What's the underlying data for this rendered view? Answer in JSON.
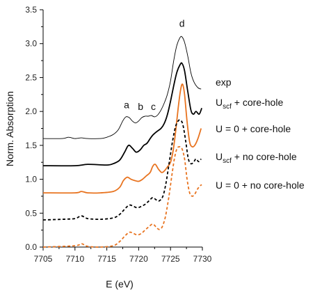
{
  "chart_data": {
    "type": "line",
    "xlabel": "E (eV)",
    "ylabel": "Norm. Absorption",
    "xlim": [
      7705,
      7730
    ],
    "ylim": [
      0.0,
      3.5
    ],
    "xticks": [
      "7705",
      "7710",
      "7715",
      "7720",
      "7725",
      "7730"
    ],
    "yticks": [
      "0.0",
      "0.5",
      "1.0",
      "1.5",
      "2.0",
      "2.5",
      "3.0",
      "3.5"
    ],
    "annotations": [
      {
        "label": "a",
        "x": 7718.1,
        "y": 2.05
      },
      {
        "label": "b",
        "x": 7720.3,
        "y": 2.02
      },
      {
        "label": "c",
        "x": 7722.3,
        "y": 2.02
      },
      {
        "label": "d",
        "x": 7726.8,
        "y": 3.25
      }
    ],
    "series": [
      {
        "name": "exp",
        "color": "#000000",
        "style": "solid",
        "weight": "thin",
        "x": [
          7705,
          7708,
          7709,
          7710,
          7711,
          7712,
          7714,
          7715,
          7716,
          7716.8,
          7717.5,
          7718.0,
          7718.5,
          7719.0,
          7719.5,
          7720.0,
          7720.5,
          7721.0,
          7721.5,
          7722.0,
          7722.5,
          7723.0,
          7723.5,
          7724.0,
          7724.5,
          7725.0,
          7725.5,
          7726.0,
          7726.5,
          7726.8,
          7727.2,
          7727.7,
          7728.2,
          7728.7,
          7729.3,
          7729.8
        ],
        "y": [
          1.6,
          1.6,
          1.62,
          1.6,
          1.61,
          1.6,
          1.6,
          1.62,
          1.66,
          1.73,
          1.86,
          1.92,
          1.91,
          1.86,
          1.83,
          1.86,
          1.91,
          1.93,
          1.93,
          1.94,
          1.92,
          1.95,
          2.02,
          2.12,
          2.25,
          2.45,
          2.75,
          2.98,
          3.09,
          3.1,
          3.02,
          2.82,
          2.57,
          2.43,
          2.35,
          2.33
        ]
      },
      {
        "name": "Uscf + core-hole",
        "color": "#000000",
        "style": "solid",
        "weight": "bold",
        "x": [
          7705,
          7710,
          7712,
          7715,
          7716,
          7717,
          7717.8,
          7718.4,
          7719.0,
          7719.6,
          7720.2,
          7720.8,
          7721.3,
          7721.8,
          7722.2,
          7722.8,
          7723.5,
          7724.0,
          7724.5,
          7725.0,
          7725.5,
          7726.0,
          7726.5,
          7726.8,
          7727.2,
          7727.7,
          7728.2,
          7728.6,
          7729.0,
          7729.5,
          7729.9
        ],
        "y": [
          1.2,
          1.2,
          1.22,
          1.21,
          1.23,
          1.28,
          1.4,
          1.5,
          1.46,
          1.4,
          1.43,
          1.5,
          1.53,
          1.6,
          1.65,
          1.7,
          1.75,
          1.82,
          1.95,
          2.15,
          2.38,
          2.58,
          2.69,
          2.71,
          2.6,
          2.3,
          2.02,
          1.96,
          2.0,
          1.96,
          2.05
        ]
      },
      {
        "name": "U = 0 + core-hole",
        "color": "#E8731F",
        "style": "solid",
        "weight": "bold",
        "x": [
          7705,
          7710,
          7711,
          7712,
          7714,
          7716,
          7717,
          7717.6,
          7718.2,
          7718.8,
          7719.4,
          7720.0,
          7720.6,
          7721.2,
          7721.8,
          7722.2,
          7722.6,
          7723.1,
          7723.6,
          7724.0,
          7724.5,
          7725.0,
          7725.4,
          7725.8,
          7726.2,
          7726.6,
          7726.9,
          7727.2,
          7727.6,
          7728.0,
          7728.4,
          7728.8,
          7729.3,
          7729.8
        ],
        "y": [
          0.8,
          0.8,
          0.82,
          0.8,
          0.8,
          0.82,
          0.88,
          0.98,
          1.03,
          1.0,
          0.98,
          0.97,
          1.0,
          1.05,
          1.1,
          1.19,
          1.22,
          1.15,
          1.1,
          1.12,
          1.18,
          1.25,
          1.42,
          1.7,
          2.05,
          2.33,
          2.4,
          2.25,
          1.85,
          1.55,
          1.48,
          1.5,
          1.6,
          1.75
        ]
      },
      {
        "name": "Uscf + no core-hole",
        "color": "#000000",
        "style": "dashed",
        "weight": "bold",
        "x": [
          7705,
          7708,
          7710,
          7711,
          7712,
          7714,
          7716,
          7717,
          7718,
          7718.6,
          7719.2,
          7719.8,
          7720.4,
          7721.0,
          7721.6,
          7722.2,
          7722.7,
          7723.2,
          7723.8,
          7724.3,
          7724.8,
          7725.3,
          7725.8,
          7726.3,
          7726.7,
          7727.0,
          7727.4,
          7727.8,
          7728.2,
          7728.6,
          7729.0,
          7729.4,
          7729.8
        ],
        "y": [
          0.4,
          0.41,
          0.42,
          0.46,
          0.42,
          0.41,
          0.43,
          0.48,
          0.58,
          0.62,
          0.6,
          0.58,
          0.6,
          0.63,
          0.68,
          0.73,
          0.7,
          0.68,
          0.75,
          0.95,
          1.25,
          1.55,
          1.78,
          1.87,
          1.86,
          1.78,
          1.55,
          1.3,
          1.23,
          1.25,
          1.3,
          1.26,
          1.3
        ]
      },
      {
        "name": "U = 0 + no core-hole",
        "color": "#E8731F",
        "style": "dashed",
        "weight": "bold",
        "x": [
          7705,
          7710,
          7711,
          7712,
          7714,
          7716,
          7717,
          7718,
          7718.6,
          7719.2,
          7719.8,
          7720.4,
          7721.0,
          7721.6,
          7722.2,
          7722.7,
          7723.2,
          7723.7,
          7724.2,
          7724.7,
          7725.2,
          7725.6,
          7726.0,
          7726.4,
          7726.8,
          7727.2,
          7727.6,
          7728.0,
          7728.4,
          7728.8,
          7729.2,
          7729.6,
          7729.9
        ],
        "y": [
          0.0,
          0.02,
          0.05,
          0.01,
          0.0,
          0.02,
          0.08,
          0.18,
          0.22,
          0.2,
          0.18,
          0.2,
          0.25,
          0.3,
          0.34,
          0.3,
          0.26,
          0.3,
          0.45,
          0.72,
          1.05,
          1.3,
          1.45,
          1.48,
          1.45,
          1.3,
          1.0,
          0.8,
          0.75,
          0.78,
          0.85,
          0.9,
          0.92
        ]
      }
    ],
    "labels": {
      "exp": "exp",
      "u_scf_core_hole": {
        "main": "U",
        "sub": "scf",
        "rest": " + core-hole"
      },
      "u0_core_hole": "U = 0 + core-hole",
      "u_scf_no_core_hole": {
        "main": "U",
        "sub": "scf",
        "rest": " + no core-hole"
      },
      "u0_no_core_hole": "U = 0 + no core-hole"
    }
  }
}
